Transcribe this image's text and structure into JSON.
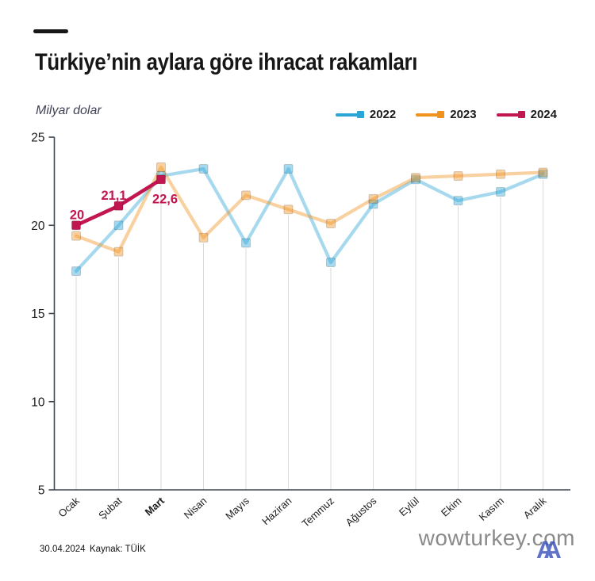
{
  "accent": {
    "dash_color": "#171717"
  },
  "chart_data": {
    "type": "line",
    "title": "Türkiye’nin aylara göre ihracat rakamları",
    "ylabel": "Milyar dolar",
    "categories": [
      "Ocak",
      "Şubat",
      "Mart",
      "Nisan",
      "Mayıs",
      "Haziran",
      "Temmuz",
      "Ağustos",
      "Eylül",
      "Ekim",
      "Kasım",
      "Aralık"
    ],
    "bold_category_index": 2,
    "ylim": [
      5,
      25
    ],
    "yticks": [
      5,
      10,
      15,
      20,
      25
    ],
    "grid": "vertical-drop-lines",
    "legend_position": "top-right",
    "axis_color": "#3d4752",
    "gridline_color": "#dadada",
    "tick_label_color": "#1c1c1c",
    "point_label_color": "#c1164f",
    "series": [
      {
        "name": "2022",
        "color": "#2aa5d6",
        "plot_opacity": 0.42,
        "values": [
          17.4,
          20.0,
          22.8,
          23.2,
          19.0,
          23.2,
          17.9,
          21.2,
          22.6,
          21.4,
          21.9,
          22.9
        ]
      },
      {
        "name": "2023",
        "color": "#f0921e",
        "plot_opacity": 0.42,
        "values": [
          19.4,
          18.5,
          23.3,
          19.3,
          21.7,
          20.9,
          20.1,
          21.5,
          22.7,
          22.8,
          22.9,
          23.0
        ]
      },
      {
        "name": "2024",
        "color": "#c1164f",
        "plot_opacity": 1,
        "values": [
          20,
          21.1,
          22.6
        ],
        "point_labels": [
          "20",
          "21,1",
          "22,6"
        ]
      }
    ]
  },
  "footer": {
    "date": "30.04.2024",
    "source": "Kaynak: TÜİK"
  },
  "watermark": {
    "text": "wowturkey.com",
    "text_color": "#8a8a8a",
    "logo": "AA",
    "logo_color": "#3b55bb"
  }
}
